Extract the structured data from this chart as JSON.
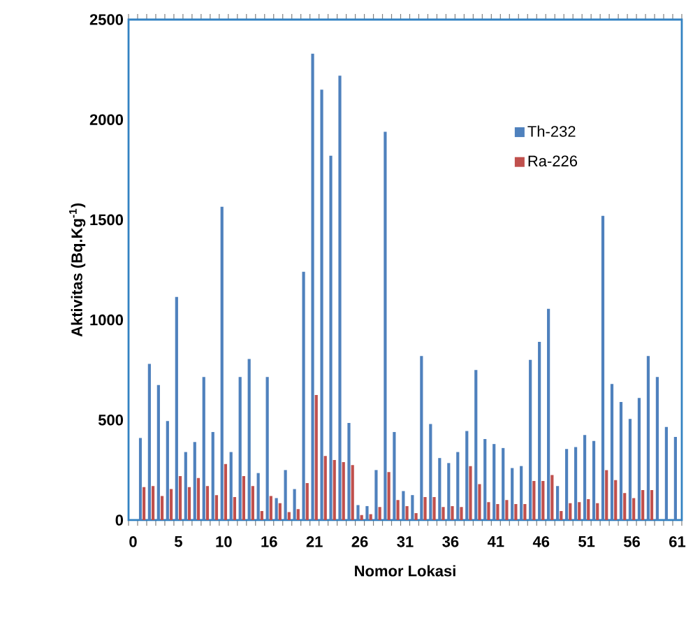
{
  "chart_data": {
    "type": "bar",
    "xlabel": "Nomor Lokasi",
    "ylabel": "Aktivitas (Bq.Kg$^{-1}$)",
    "categories": [
      "0",
      null,
      null,
      null,
      null,
      "5",
      null,
      null,
      null,
      null,
      "10",
      null,
      null,
      null,
      null,
      "16",
      null,
      null,
      null,
      null,
      "21",
      null,
      null,
      null,
      null,
      "26",
      null,
      null,
      null,
      null,
      "31",
      null,
      null,
      null,
      null,
      "36",
      null,
      null,
      null,
      null,
      "41",
      null,
      null,
      null,
      null,
      "46",
      null,
      null,
      null,
      null,
      "51",
      null,
      null,
      null,
      null,
      "56",
      null,
      null,
      null,
      null,
      "61"
    ],
    "series": [
      {
        "name": "Th-232",
        "color": "#4f81bd",
        "values": [
          null,
          410,
          780,
          675,
          495,
          1115,
          340,
          390,
          715,
          440,
          1565,
          340,
          715,
          805,
          235,
          715,
          110,
          250,
          155,
          1240,
          2330,
          2150,
          1820,
          2220,
          485,
          75,
          70,
          250,
          1940,
          440,
          145,
          125,
          820,
          480,
          310,
          285,
          340,
          445,
          750,
          405,
          380,
          360,
          260,
          270,
          800,
          890,
          1055,
          170,
          355,
          365,
          425,
          395,
          1520,
          680,
          590,
          505,
          610,
          820,
          715,
          465,
          415
        ]
      },
      {
        "name": "Ra-226",
        "color": "#c0504d",
        "values": [
          null,
          165,
          170,
          120,
          155,
          220,
          165,
          210,
          170,
          125,
          280,
          115,
          220,
          170,
          45,
          120,
          85,
          40,
          55,
          185,
          625,
          320,
          300,
          290,
          275,
          25,
          30,
          65,
          240,
          100,
          70,
          35,
          115,
          115,
          65,
          70,
          65,
          270,
          180,
          90,
          80,
          100,
          80,
          80,
          195,
          195,
          225,
          45,
          85,
          90,
          105,
          85,
          250,
          200,
          135,
          110,
          150,
          150,
          null,
          null,
          null
        ]
      }
    ],
    "ylim": [
      0,
      2500
    ],
    "yticks": [
      0,
      500,
      1000,
      1500,
      2000,
      2500
    ],
    "legend": "top right"
  }
}
